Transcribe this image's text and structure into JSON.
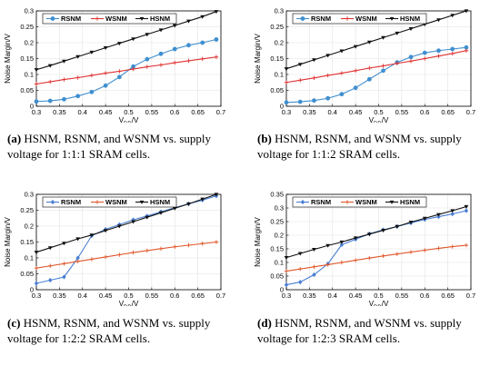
{
  "chart_data": [
    {
      "type": "line",
      "xlabel": "V_DD/V",
      "ylabel": "Noise Margin/V",
      "xlim": [
        0.3,
        0.7
      ],
      "ylim": [
        0,
        0.3
      ],
      "xticks": [
        0.3,
        0.35,
        0.4,
        0.45,
        0.5,
        0.55,
        0.6,
        0.65,
        0.7
      ],
      "yticks": [
        0,
        0.05,
        0.1,
        0.15,
        0.2,
        0.25,
        0.3
      ],
      "grid": true,
      "legend": "top",
      "series": [
        {
          "name": "RSNM",
          "color": "#3f8fd0",
          "marker": "circle",
          "x": [
            0.3,
            0.33,
            0.36,
            0.39,
            0.42,
            0.45,
            0.48,
            0.51,
            0.54,
            0.57,
            0.6,
            0.63,
            0.66,
            0.69
          ],
          "y": [
            0.015,
            0.017,
            0.022,
            0.032,
            0.045,
            0.065,
            0.092,
            0.125,
            0.148,
            0.165,
            0.18,
            0.192,
            0.2,
            0.21
          ]
        },
        {
          "name": "WSNM",
          "color": "#e03030",
          "marker": "plus",
          "x": [
            0.3,
            0.33,
            0.36,
            0.39,
            0.42,
            0.45,
            0.48,
            0.51,
            0.54,
            0.57,
            0.6,
            0.63,
            0.66,
            0.69
          ],
          "y": [
            0.07,
            0.077,
            0.084,
            0.09,
            0.097,
            0.104,
            0.11,
            0.117,
            0.124,
            0.13,
            0.137,
            0.143,
            0.149,
            0.155
          ]
        },
        {
          "name": "HSNM",
          "color": "#111111",
          "marker": "triangle",
          "x": [
            0.3,
            0.33,
            0.36,
            0.39,
            0.42,
            0.45,
            0.48,
            0.51,
            0.54,
            0.57,
            0.6,
            0.63,
            0.66,
            0.69
          ],
          "y": [
            0.115,
            0.128,
            0.142,
            0.156,
            0.17,
            0.184,
            0.198,
            0.212,
            0.226,
            0.24,
            0.254,
            0.268,
            0.282,
            0.298
          ]
        }
      ]
    },
    {
      "type": "line",
      "xlabel": "V_DD/V",
      "ylabel": "Noise Margin/V",
      "xlim": [
        0.3,
        0.7
      ],
      "ylim": [
        0,
        0.3
      ],
      "xticks": [
        0.3,
        0.35,
        0.4,
        0.45,
        0.5,
        0.55,
        0.6,
        0.65,
        0.7
      ],
      "yticks": [
        0,
        0.05,
        0.1,
        0.15,
        0.2,
        0.25,
        0.3
      ],
      "grid": true,
      "legend": "top",
      "series": [
        {
          "name": "RSNM",
          "color": "#3f8fd0",
          "marker": "circle",
          "x": [
            0.3,
            0.33,
            0.36,
            0.39,
            0.42,
            0.45,
            0.48,
            0.51,
            0.54,
            0.57,
            0.6,
            0.63,
            0.66,
            0.69
          ],
          "y": [
            0.012,
            0.014,
            0.018,
            0.025,
            0.038,
            0.058,
            0.085,
            0.112,
            0.138,
            0.155,
            0.168,
            0.175,
            0.18,
            0.185
          ]
        },
        {
          "name": "WSNM",
          "color": "#e03030",
          "marker": "plus",
          "x": [
            0.3,
            0.33,
            0.36,
            0.39,
            0.42,
            0.45,
            0.48,
            0.51,
            0.54,
            0.57,
            0.6,
            0.63,
            0.66,
            0.69
          ],
          "y": [
            0.075,
            0.082,
            0.089,
            0.097,
            0.104,
            0.112,
            0.12,
            0.127,
            0.135,
            0.142,
            0.15,
            0.158,
            0.166,
            0.175
          ]
        },
        {
          "name": "HSNM",
          "color": "#111111",
          "marker": "triangle",
          "x": [
            0.3,
            0.33,
            0.36,
            0.39,
            0.42,
            0.45,
            0.48,
            0.51,
            0.54,
            0.57,
            0.6,
            0.63,
            0.66,
            0.69
          ],
          "y": [
            0.118,
            0.132,
            0.146,
            0.16,
            0.174,
            0.188,
            0.202,
            0.216,
            0.23,
            0.244,
            0.258,
            0.272,
            0.286,
            0.3
          ]
        }
      ]
    },
    {
      "type": "line",
      "xlabel": "V_DD/V",
      "ylabel": "Noise Margin/V",
      "xlim": [
        0.3,
        0.7
      ],
      "ylim": [
        0,
        0.3
      ],
      "xticks": [
        0.3,
        0.35,
        0.4,
        0.45,
        0.5,
        0.55,
        0.6,
        0.65,
        0.7
      ],
      "yticks": [
        0,
        0.05,
        0.1,
        0.15,
        0.2,
        0.25,
        0.3
      ],
      "grid": true,
      "legend": "top",
      "series": [
        {
          "name": "RSNM",
          "color": "#4a7fd4",
          "marker": "diamond",
          "x": [
            0.3,
            0.33,
            0.36,
            0.39,
            0.42,
            0.45,
            0.48,
            0.51,
            0.54,
            0.57,
            0.6,
            0.63,
            0.66,
            0.69
          ],
          "y": [
            0.02,
            0.03,
            0.04,
            0.1,
            0.17,
            0.19,
            0.205,
            0.22,
            0.232,
            0.245,
            0.258,
            0.27,
            0.282,
            0.295
          ]
        },
        {
          "name": "WSNM",
          "color": "#e0562a",
          "marker": "plus",
          "x": [
            0.3,
            0.33,
            0.36,
            0.39,
            0.42,
            0.45,
            0.48,
            0.51,
            0.54,
            0.57,
            0.6,
            0.63,
            0.66,
            0.69
          ],
          "y": [
            0.068,
            0.075,
            0.082,
            0.089,
            0.096,
            0.103,
            0.11,
            0.117,
            0.123,
            0.129,
            0.135,
            0.14,
            0.145,
            0.15
          ]
        },
        {
          "name": "HSNM",
          "color": "#111111",
          "marker": "triangle",
          "x": [
            0.3,
            0.33,
            0.36,
            0.39,
            0.42,
            0.45,
            0.48,
            0.51,
            0.54,
            0.57,
            0.6,
            0.63,
            0.66,
            0.69
          ],
          "y": [
            0.118,
            0.132,
            0.146,
            0.16,
            0.172,
            0.186,
            0.2,
            0.214,
            0.228,
            0.242,
            0.256,
            0.27,
            0.285,
            0.3
          ]
        }
      ]
    },
    {
      "type": "line",
      "xlabel": "V_DD/V",
      "ylabel": "Noise Margin/V",
      "xlim": [
        0.3,
        0.7
      ],
      "ylim": [
        0,
        0.35
      ],
      "xticks": [
        0.3,
        0.35,
        0.4,
        0.45,
        0.5,
        0.55,
        0.6,
        0.65,
        0.7
      ],
      "yticks": [
        0,
        0.05,
        0.1,
        0.15,
        0.2,
        0.25,
        0.3,
        0.35
      ],
      "grid": true,
      "legend": "top",
      "series": [
        {
          "name": "RSNM",
          "color": "#4a7fd4",
          "marker": "diamond",
          "x": [
            0.3,
            0.33,
            0.36,
            0.39,
            0.42,
            0.45,
            0.48,
            0.51,
            0.54,
            0.57,
            0.6,
            0.63,
            0.66,
            0.69
          ],
          "y": [
            0.018,
            0.028,
            0.055,
            0.095,
            0.165,
            0.185,
            0.205,
            0.22,
            0.232,
            0.245,
            0.258,
            0.268,
            0.278,
            0.29
          ]
        },
        {
          "name": "WSNM",
          "color": "#e0562a",
          "marker": "plus",
          "x": [
            0.3,
            0.33,
            0.36,
            0.39,
            0.42,
            0.45,
            0.48,
            0.51,
            0.54,
            0.57,
            0.6,
            0.63,
            0.66,
            0.69
          ],
          "y": [
            0.068,
            0.076,
            0.084,
            0.092,
            0.1,
            0.108,
            0.116,
            0.124,
            0.131,
            0.138,
            0.145,
            0.152,
            0.158,
            0.163
          ]
        },
        {
          "name": "HSNM",
          "color": "#111111",
          "marker": "triangle",
          "x": [
            0.3,
            0.33,
            0.36,
            0.39,
            0.42,
            0.45,
            0.48,
            0.51,
            0.54,
            0.57,
            0.6,
            0.63,
            0.66,
            0.69
          ],
          "y": [
            0.118,
            0.133,
            0.148,
            0.162,
            0.175,
            0.19,
            0.204,
            0.218,
            0.232,
            0.248,
            0.262,
            0.276,
            0.29,
            0.305
          ]
        }
      ]
    }
  ],
  "captions": [
    {
      "letter": "(a)",
      "text": " HSNM, RSNM, and WSNM vs.  supply voltage for 1:1:1 SRAM cells."
    },
    {
      "letter": "(b)",
      "text": " HSNM, RSNM, and WSNM vs.  supply voltage for 1:1:2 SRAM cells."
    },
    {
      "letter": "(c)",
      "text": " HSNM, RSNM, and WSNM vs.  supply voltage for 1:2:2 SRAM cells."
    },
    {
      "letter": "(d)",
      "text": " HSNM, RSNM, and WSNM vs.  supply voltage for 1:2:3 SRAM cells."
    }
  ]
}
